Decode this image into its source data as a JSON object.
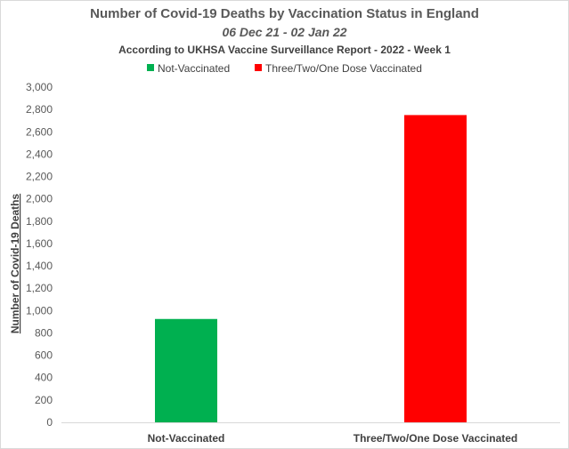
{
  "chart_data": {
    "type": "bar",
    "title": "Number of Covid-19 Deaths by Vaccination Status in England",
    "subtitle": "06 Dec 21 - 02 Jan 22",
    "source_note": "According to UKHSA Vaccine Surveillance Report - 2022 - Week 1",
    "xlabel": "",
    "ylabel": "Number of Covid-19 Deaths",
    "categories": [
      "Not-Vaccinated",
      "Three/Two/One Dose Vaccinated"
    ],
    "values": [
      925,
      2750
    ],
    "colors": [
      "#00b050",
      "#ff0000"
    ],
    "legend": {
      "placement": "top",
      "entries": [
        {
          "label": "Not-Vaccinated",
          "color": "#00b050"
        },
        {
          "label": "Three/Two/One Dose Vaccinated",
          "color": "#ff0000"
        }
      ]
    },
    "ylim": [
      0,
      3000
    ],
    "yticks": [
      0,
      200,
      400,
      600,
      800,
      1000,
      1200,
      1400,
      1600,
      1800,
      2000,
      2200,
      2400,
      2600,
      2800,
      3000
    ],
    "ytick_labels": [
      "0",
      "200",
      "400",
      "600",
      "800",
      "1,000",
      "1,200",
      "1,400",
      "1,600",
      "1,800",
      "2,000",
      "2,200",
      "2,400",
      "2,600",
      "2,800",
      "3,000"
    ],
    "grid": false
  }
}
